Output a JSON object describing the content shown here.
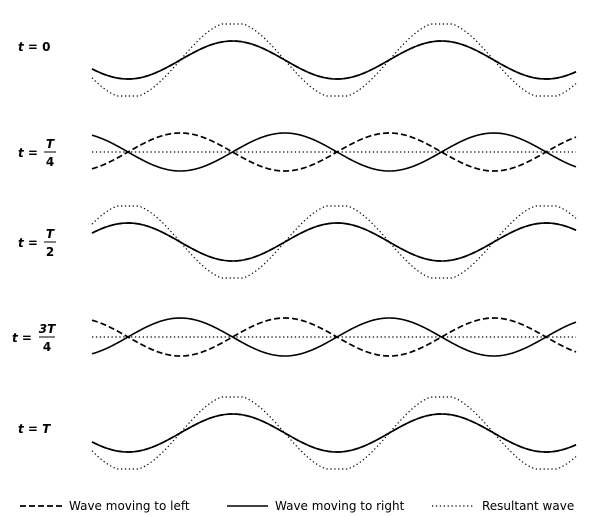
{
  "rows": [
    {
      "label_prefix": "t = ",
      "numerator": "0",
      "denominator": "",
      "phase_fraction": 0
    },
    {
      "label_prefix": "t = ",
      "numerator": "T",
      "denominator": "4",
      "phase_fraction": 0.25
    },
    {
      "label_prefix": "t = ",
      "numerator": "T",
      "denominator": "2",
      "phase_fraction": 0.5
    },
    {
      "label_prefix": "t = ",
      "numerator": "3T",
      "denominator": "4",
      "phase_fraction": 0.75
    },
    {
      "label_prefix": "t = ",
      "numerator": "T",
      "denominator": "",
      "phase_fraction": 1
    }
  ],
  "legend": {
    "left_wave": "Wave moving to left",
    "right_wave": "Wave moving to right",
    "resultant": "Resultant wave"
  },
  "colors": {
    "ink": "#000000",
    "background": "#ffffff"
  }
}
